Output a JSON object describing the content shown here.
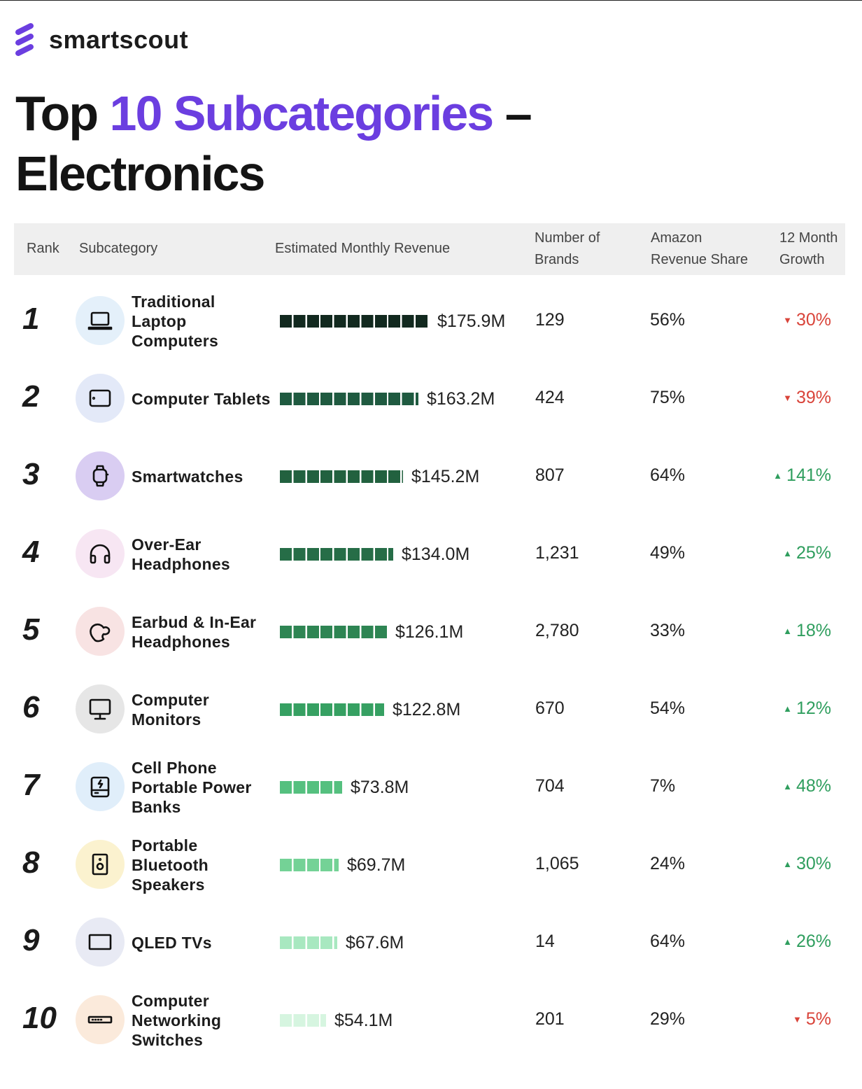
{
  "brand": {
    "name": "smartscout",
    "color": "#6b3ee0"
  },
  "title": {
    "prefix": "Top",
    "accent": "10 Subcategories",
    "suffix": "–",
    "line2": "Electronics"
  },
  "chart_data": {
    "type": "table",
    "title": "Top 10 Subcategories – Electronics",
    "columns": [
      "Rank",
      "Subcategory",
      "Estimated Monthly Revenue",
      "Number of Brands",
      "Amazon Revenue Share",
      "12 Month Growth"
    ],
    "header_lines": {
      "brands": [
        "Number of",
        "Brands"
      ],
      "share": [
        "Amazon",
        "Revenue Share"
      ],
      "growth": [
        "12 Month",
        "Growth"
      ]
    },
    "rows": [
      {
        "rank": "1",
        "name": "Traditional Laptop Computers",
        "icon": "laptop-icon",
        "icon_bg": "#e4f0fa",
        "revenue": 175.9,
        "revenue_label": "$175.9M",
        "bar_color": "#12291f",
        "brands": "129",
        "share": "56%",
        "growth": "30%",
        "direction": "down"
      },
      {
        "rank": "2",
        "name": "Computer Tablets",
        "icon": "tablet-icon",
        "icon_bg": "#e3e9f8",
        "revenue": 163.2,
        "revenue_label": "$163.2M",
        "bar_color": "#1f5a40",
        "brands": "424",
        "share": "75%",
        "growth": "39%",
        "direction": "down"
      },
      {
        "rank": "3",
        "name": "Smartwatches",
        "icon": "smartwatch-icon",
        "icon_bg": "#d9cdf2",
        "revenue": 145.2,
        "revenue_label": "$145.2M",
        "bar_color": "#22613f",
        "brands": "807",
        "share": "64%",
        "growth": "141%",
        "direction": "up"
      },
      {
        "rank": "4",
        "name": "Over-Ear Headphones",
        "icon": "headphones-icon",
        "icon_bg": "#f7e6f3",
        "revenue": 134.0,
        "revenue_label": "$134.0M",
        "bar_color": "#266d47",
        "brands": "1,231",
        "share": "49%",
        "growth": "25%",
        "direction": "up"
      },
      {
        "rank": "5",
        "name": "Earbud & In-Ear Headphones",
        "icon": "earbud-icon",
        "icon_bg": "#f8e3e3",
        "revenue": 126.1,
        "revenue_label": "$126.1M",
        "bar_color": "#2e8553",
        "brands": "2,780",
        "share": "33%",
        "growth": "18%",
        "direction": "up"
      },
      {
        "rank": "6",
        "name": "Computer Monitors",
        "icon": "monitor-icon",
        "icon_bg": "#e6e6e6",
        "revenue": 122.8,
        "revenue_label": "$122.8M",
        "bar_color": "#36a062",
        "brands": "670",
        "share": "54%",
        "growth": "12%",
        "direction": "up"
      },
      {
        "rank": "7",
        "name": "Cell Phone Portable Power Banks",
        "icon": "power-bank-icon",
        "icon_bg": "#e0eefa",
        "revenue": 73.8,
        "revenue_label": "$73.8M",
        "bar_color": "#55c07f",
        "brands": "704",
        "share": "7%",
        "growth": "48%",
        "direction": "up"
      },
      {
        "rank": "8",
        "name": "Portable Bluetooth Speakers",
        "icon": "speaker-icon",
        "icon_bg": "#fbf2cf",
        "revenue": 69.7,
        "revenue_label": "$69.7M",
        "bar_color": "#74d296",
        "brands": "1,065",
        "share": "24%",
        "growth": "30%",
        "direction": "up"
      },
      {
        "rank": "9",
        "name": "QLED TVs",
        "icon": "tv-icon",
        "icon_bg": "#e8eaf4",
        "revenue": 67.6,
        "revenue_label": "$67.6M",
        "bar_color": "#a8e8c0",
        "brands": "14",
        "share": "64%",
        "growth": "26%",
        "direction": "up"
      },
      {
        "rank": "10",
        "name": "Computer Networking Switches",
        "icon": "network-switch-icon",
        "icon_bg": "#fbeadb",
        "revenue": 54.1,
        "revenue_label": "$54.1M",
        "bar_color": "#d6f5e0",
        "brands": "201",
        "share": "29%",
        "growth": "5%",
        "direction": "down"
      }
    ],
    "colors": {
      "up": "#2f9e5e",
      "down": "#d9443a"
    }
  }
}
